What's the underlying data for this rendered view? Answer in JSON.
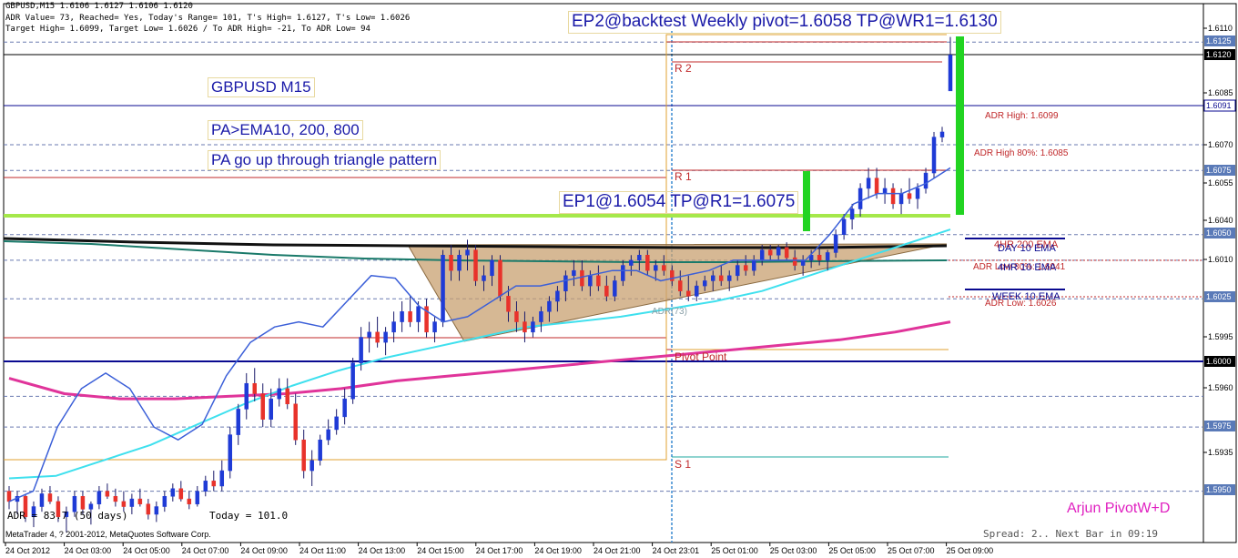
{
  "header": {
    "line1": "GBPUSD,M15  1.6106 1.6127 1.6106 1.6120",
    "line2": "ADR Value= 73, Reached= Yes, Today's Range= 101, T's High= 1.6127, T's Low= 1.6026",
    "line3": "Target High= 1.6099, Target Low= 1.6026 / To ADR High= -21, To ADR Low= 94"
  },
  "annotations": {
    "title": "GBPUSD M15",
    "ema": "PA>EMA10, 200, 800",
    "pattern": "PA go up through triangle pattern",
    "ep1": "EP1@1.6054 TP@R1=1.6075",
    "ep2": "EP2@backtest Weekly pivot=1.6058 TP@WR1=1.6130",
    "brand": "Arjun PivotW+D",
    "adr_footer": "ADR = 83.7 (50 days)",
    "today_footer": "Today = 101.0",
    "copyright": "MetaTrader 4, ? 2001-2012, MetaQuotes Software Corp.",
    "spread": "Spread: 2.. Next Bar in 09:19"
  },
  "colors": {
    "bull": "#1f3bd6",
    "bear": "#e8322b",
    "ema10": "#3b5fd8",
    "ema200": "#3fe0ee",
    "ema800": "#e0349a",
    "green": "#22d422",
    "lime": "#a5e84a",
    "navy": "#0a0a90",
    "pivot_red": "#c0282a",
    "orange": "#e0a030",
    "triangle": "#c8a070"
  },
  "chart_data": {
    "type": "candlestick",
    "symbol": "GBPUSD",
    "timeframe": "M15",
    "ylim": [
      1.593,
      1.614
    ],
    "y_ticks": [
      "1.6110",
      "1.6085",
      "1.6070",
      "1.6055",
      "1.6040",
      "1.6010",
      "1.5995",
      "1.5960",
      "1.5935"
    ],
    "price_tags": [
      "1.6125",
      "1.6120",
      "1.6091",
      "1.6075",
      "1.6050",
      "1.6025",
      "1.6000",
      "1.5975",
      "1.5950"
    ],
    "x_ticks": [
      "24 Oct 2012",
      "24 Oct 03:00",
      "24 Oct 05:00",
      "24 Oct 07:00",
      "24 Oct 09:00",
      "24 Oct 11:00",
      "24 Oct 13:00",
      "24 Oct 15:00",
      "24 Oct 17:00",
      "24 Oct 19:00",
      "24 Oct 21:00",
      "24 Oct 23:01",
      "25 Oct 01:00",
      "25 Oct 03:00",
      "25 Oct 05:00",
      "25 Oct 07:00",
      "25 Oct 09:00"
    ],
    "levels": [
      {
        "label": "R 2",
        "price": 1.6115
      },
      {
        "label": "R 1",
        "price": 1.6075
      },
      {
        "label": "Pivot Point",
        "price": 1.6002
      },
      {
        "label": "S 1",
        "price": 1.5962
      },
      {
        "label": "ADR High: 1.6099",
        "price": 1.6099
      },
      {
        "label": "ADR High 80%: 1.6085",
        "price": 1.6085
      },
      {
        "label": "ADR Low: 1.6026",
        "price": 1.6026
      },
      {
        "label": "ADR Low 80%: 1.6041",
        "price": 1.6041
      }
    ],
    "ema_labels": [
      "4HR 200 EMA",
      "DAY 10 EMA",
      "4HR 10 EMA",
      "WEEK 10 EMA"
    ],
    "ad_label": "ADR(73)",
    "series": [
      {
        "name": "candles",
        "ohlc": [
          [
            1.595,
            1.5952,
            1.5943,
            1.5946
          ],
          [
            1.5946,
            1.595,
            1.5941,
            1.5948
          ],
          [
            1.5948,
            1.5949,
            1.5938,
            1.594
          ],
          [
            1.594,
            1.5946,
            1.5936,
            1.5944
          ],
          [
            1.5944,
            1.5951,
            1.5942,
            1.5949
          ],
          [
            1.5949,
            1.5952,
            1.5945,
            1.5946
          ],
          [
            1.5946,
            1.5948,
            1.5938,
            1.594
          ],
          [
            1.594,
            1.5944,
            1.5934,
            1.5942
          ],
          [
            1.5942,
            1.595,
            1.594,
            1.5948
          ],
          [
            1.5948,
            1.595,
            1.5941,
            1.5943
          ],
          [
            1.5943,
            1.5946,
            1.5937,
            1.5945
          ],
          [
            1.5945,
            1.5952,
            1.5943,
            1.595
          ],
          [
            1.595,
            1.5953,
            1.5947,
            1.5948
          ],
          [
            1.5948,
            1.5951,
            1.5944,
            1.5946
          ],
          [
            1.5946,
            1.595,
            1.5942,
            1.5944
          ],
          [
            1.5944,
            1.5949,
            1.5941,
            1.5947
          ],
          [
            1.5947,
            1.5951,
            1.5944,
            1.5945
          ],
          [
            1.5945,
            1.5947,
            1.5939,
            1.5941
          ],
          [
            1.5941,
            1.5946,
            1.5938,
            1.5944
          ],
          [
            1.5944,
            1.595,
            1.5942,
            1.5948
          ],
          [
            1.5948,
            1.5953,
            1.5946,
            1.5951
          ],
          [
            1.5951,
            1.5954,
            1.5946,
            1.5947
          ],
          [
            1.5947,
            1.595,
            1.5943,
            1.5945
          ],
          [
            1.5945,
            1.5952,
            1.5944,
            1.595
          ],
          [
            1.595,
            1.5956,
            1.5948,
            1.5954
          ],
          [
            1.5954,
            1.5958,
            1.595,
            1.5952
          ],
          [
            1.5952,
            1.5962,
            1.595,
            1.5958
          ],
          [
            1.5958,
            1.5975,
            1.5955,
            1.5972
          ],
          [
            1.5972,
            1.5984,
            1.5968,
            1.5982
          ],
          [
            1.5982,
            1.5996,
            1.5978,
            1.5992
          ],
          [
            1.5992,
            1.5998,
            1.5985,
            1.5988
          ],
          [
            1.5988,
            1.5992,
            1.5975,
            1.5978
          ],
          [
            1.5978,
            1.599,
            1.5975,
            1.5986
          ],
          [
            1.5986,
            1.5994,
            1.5983,
            1.599
          ],
          [
            1.599,
            1.5994,
            1.5982,
            1.5984
          ],
          [
            1.5984,
            1.5988,
            1.5968,
            1.597
          ],
          [
            1.597,
            1.5974,
            1.5955,
            1.5958
          ],
          [
            1.5958,
            1.5966,
            1.5952,
            1.5962
          ],
          [
            1.5962,
            1.5972,
            1.596,
            1.597
          ],
          [
            1.597,
            1.5978,
            1.5968,
            1.5974
          ],
          [
            1.5974,
            1.5982,
            1.5972,
            1.5979
          ],
          [
            1.5979,
            1.599,
            1.5976,
            1.5986
          ],
          [
            1.5986,
            1.6002,
            1.5984,
            1.6
          ],
          [
            1.6,
            1.6014,
            1.5997,
            1.601
          ],
          [
            1.601,
            1.6016,
            1.6004,
            1.6012
          ],
          [
            1.6012,
            1.6018,
            1.6006,
            1.6008
          ],
          [
            1.6008,
            1.6014,
            1.6003,
            1.6012
          ],
          [
            1.6012,
            1.602,
            1.6008,
            1.6016
          ],
          [
            1.6016,
            1.6024,
            1.6012,
            1.602
          ],
          [
            1.602,
            1.6026,
            1.6014,
            1.6016
          ],
          [
            1.6016,
            1.6024,
            1.6012,
            1.6022
          ],
          [
            1.6022,
            1.6025,
            1.601,
            1.6012
          ],
          [
            1.6012,
            1.6018,
            1.6008,
            1.6016
          ],
          [
            1.6016,
            1.6044,
            1.6014,
            1.6042
          ],
          [
            1.6042,
            1.6046,
            1.6032,
            1.6036
          ],
          [
            1.6036,
            1.6044,
            1.6032,
            1.6042
          ],
          [
            1.6042,
            1.6048,
            1.6036,
            1.6044
          ],
          [
            1.6044,
            1.6046,
            1.603,
            1.6032
          ],
          [
            1.6032,
            1.6038,
            1.6028,
            1.6034
          ],
          [
            1.6034,
            1.6042,
            1.603,
            1.604
          ],
          [
            1.604,
            1.6042,
            1.6024,
            1.6026
          ],
          [
            1.6026,
            1.603,
            1.6016,
            1.602
          ],
          [
            1.602,
            1.6024,
            1.6012,
            1.6016
          ],
          [
            1.6016,
            1.602,
            1.6008,
            1.6012
          ],
          [
            1.6012,
            1.6018,
            1.601,
            1.6016
          ],
          [
            1.6016,
            1.6022,
            1.6012,
            1.602
          ],
          [
            1.602,
            1.6026,
            1.6016,
            1.6024
          ],
          [
            1.6024,
            1.603,
            1.602,
            1.6028
          ],
          [
            1.6028,
            1.6036,
            1.6024,
            1.6034
          ],
          [
            1.6034,
            1.604,
            1.603,
            1.6036
          ],
          [
            1.6036,
            1.604,
            1.6028,
            1.603
          ],
          [
            1.603,
            1.6036,
            1.6026,
            1.6034
          ],
          [
            1.6034,
            1.6038,
            1.6028,
            1.603
          ],
          [
            1.603,
            1.6034,
            1.6024,
            1.6026
          ],
          [
            1.6026,
            1.6034,
            1.6024,
            1.6032
          ],
          [
            1.6032,
            1.604,
            1.603,
            1.6038
          ],
          [
            1.6038,
            1.6042,
            1.6034,
            1.604
          ],
          [
            1.604,
            1.6044,
            1.6036,
            1.6042
          ],
          [
            1.6042,
            1.6044,
            1.6034,
            1.6036
          ],
          [
            1.6036,
            1.604,
            1.6032,
            1.6038
          ],
          [
            1.6038,
            1.6042,
            1.6034,
            1.6036
          ],
          [
            1.6036,
            1.6038,
            1.603,
            1.6032
          ],
          [
            1.6032,
            1.6036,
            1.6026,
            1.6028
          ],
          [
            1.6028,
            1.6034,
            1.6024,
            1.6026
          ],
          [
            1.6026,
            1.6032,
            1.6024,
            1.603
          ],
          [
            1.603,
            1.6034,
            1.6028,
            1.6032
          ],
          [
            1.6032,
            1.6036,
            1.6028,
            1.6034
          ],
          [
            1.6034,
            1.6038,
            1.603,
            1.6032
          ],
          [
            1.6032,
            1.6036,
            1.6028,
            1.6034
          ],
          [
            1.6034,
            1.604,
            1.6032,
            1.6038
          ],
          [
            1.6038,
            1.6042,
            1.6034,
            1.6036
          ],
          [
            1.6036,
            1.6042,
            1.6034,
            1.604
          ],
          [
            1.604,
            1.6046,
            1.6038,
            1.6044
          ],
          [
            1.6044,
            1.6046,
            1.604,
            1.6042
          ],
          [
            1.6042,
            1.6046,
            1.604,
            1.6045
          ],
          [
            1.6045,
            1.6047,
            1.604,
            1.6041
          ],
          [
            1.6041,
            1.6044,
            1.6036,
            1.6038
          ],
          [
            1.6038,
            1.6042,
            1.6034,
            1.604
          ],
          [
            1.604,
            1.6044,
            1.6037,
            1.6042
          ],
          [
            1.6042,
            1.6045,
            1.6038,
            1.604
          ],
          [
            1.604,
            1.6044,
            1.6036,
            1.6043
          ],
          [
            1.6043,
            1.6052,
            1.6041,
            1.605
          ],
          [
            1.605,
            1.6058,
            1.6048,
            1.6056
          ],
          [
            1.6056,
            1.6062,
            1.6052,
            1.606
          ],
          [
            1.606,
            1.607,
            1.6057,
            1.6068
          ],
          [
            1.6068,
            1.6076,
            1.6064,
            1.6072
          ],
          [
            1.6072,
            1.6076,
            1.6064,
            1.6066
          ],
          [
            1.6066,
            1.6072,
            1.6062,
            1.6068
          ],
          [
            1.6068,
            1.607,
            1.606,
            1.6062
          ],
          [
            1.6062,
            1.6068,
            1.6058,
            1.6066
          ],
          [
            1.6066,
            1.6072,
            1.6062,
            1.6064
          ],
          [
            1.6064,
            1.607,
            1.606,
            1.6068
          ],
          [
            1.6068,
            1.6076,
            1.6066,
            1.6074
          ],
          [
            1.6074,
            1.609,
            1.6072,
            1.6088
          ],
          [
            1.6088,
            1.6092,
            1.6086,
            1.609
          ],
          [
            1.6106,
            1.6127,
            1.6106,
            1.612
          ]
        ]
      },
      {
        "name": "EMA10",
        "values": [
          1.5946,
          1.595,
          1.5975,
          1.599,
          1.5996,
          1.599,
          1.5975,
          1.597,
          1.5976,
          1.5995,
          1.6008,
          1.6014,
          1.6016,
          1.6014,
          1.6024,
          1.6034,
          1.6033,
          1.6022,
          1.6016,
          1.6018,
          1.6024,
          1.603,
          1.603,
          1.6032,
          1.6034,
          1.6036,
          1.6036,
          1.6032,
          1.6034,
          1.6036,
          1.604,
          1.604,
          1.604,
          1.604,
          1.605,
          1.6062,
          1.6066,
          1.6066,
          1.607,
          1.6076
        ]
      },
      {
        "name": "EMA200",
        "values": [
          1.5955,
          1.5956,
          1.5962,
          1.5968,
          1.5976,
          1.5984,
          1.5991,
          1.5997,
          1.6002,
          1.6006,
          1.601,
          1.6014,
          1.6016,
          1.6018,
          1.6021,
          1.6024,
          1.6028,
          1.6034,
          1.604,
          1.6046,
          1.6052
        ]
      },
      {
        "name": "EMA800",
        "values": [
          1.5994,
          1.5988,
          1.5986,
          1.5986,
          1.5987,
          1.5988,
          1.599,
          1.5993,
          1.5995,
          1.5997,
          1.5999,
          1.6001,
          1.6003,
          1.6005,
          1.6007,
          1.6009,
          1.6012,
          1.6016
        ]
      }
    ]
  }
}
